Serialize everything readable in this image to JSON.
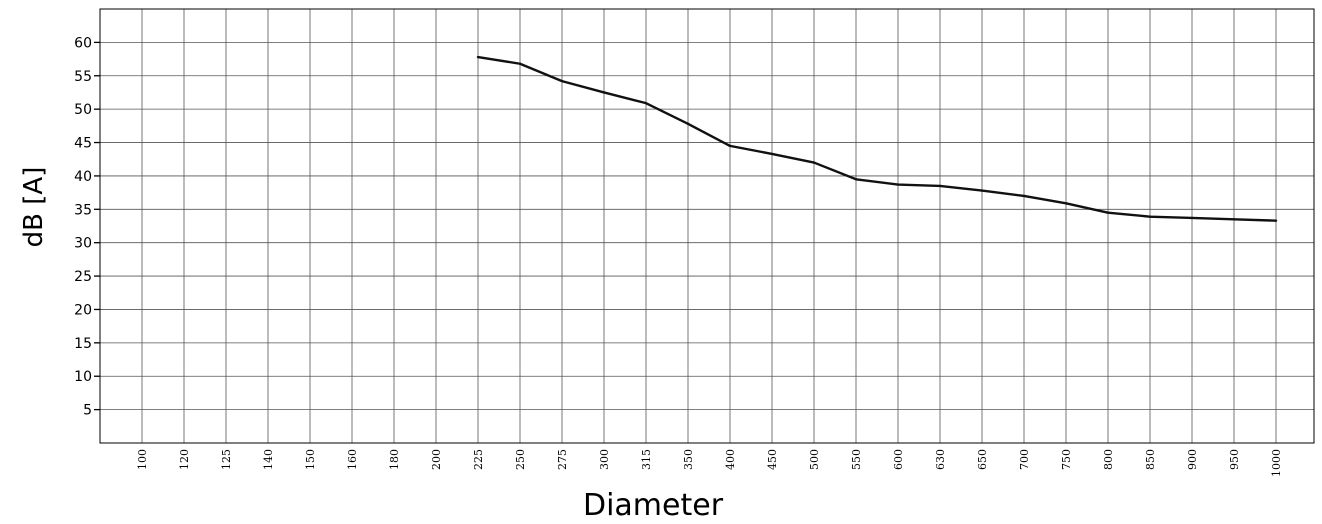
{
  "chart_data": {
    "type": "line",
    "xlabel": "Diameter",
    "ylabel": "dB [A]",
    "categories": [
      "100",
      "120",
      "125",
      "140",
      "150",
      "160",
      "180",
      "200",
      "225",
      "250",
      "275",
      "300",
      "315",
      "350",
      "400",
      "450",
      "500",
      "550",
      "600",
      "630",
      "650",
      "700",
      "750",
      "800",
      "850",
      "900",
      "950",
      "1000"
    ],
    "yticks": [
      5,
      10,
      15,
      20,
      25,
      30,
      35,
      40,
      45,
      50,
      55,
      60
    ],
    "ylim": [
      0,
      65
    ],
    "grid": true,
    "series": [
      {
        "values": [
          null,
          null,
          null,
          null,
          null,
          null,
          null,
          null,
          57.8,
          56.8,
          54.2,
          52.5,
          50.9,
          47.8,
          44.5,
          43.3,
          42.0,
          39.5,
          38.7,
          38.5,
          37.8,
          37.0,
          35.9,
          34.5,
          33.9,
          33.7,
          33.5,
          33.3
        ],
        "color": "#111111"
      }
    ]
  }
}
